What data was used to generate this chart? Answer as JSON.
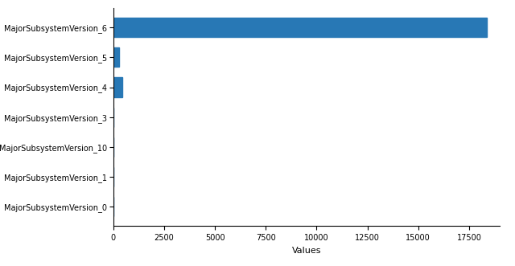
{
  "categories": [
    "MajorSubsystemVersion_6",
    "MajorSubsystemVersion_5",
    "MajorSubsystemVersion_4",
    "MajorSubsystemVersion_3",
    "MajorSubsystemVersion_10",
    "MajorSubsystemVersion_1",
    "MajorSubsystemVersion_0"
  ],
  "values": [
    18357,
    270,
    450,
    2,
    1,
    1,
    1
  ],
  "bar_color": "#2878b5",
  "xlabel": "Values",
  "xlim": [
    0,
    19000
  ],
  "xticks": [
    0,
    2500,
    5000,
    7500,
    10000,
    12500,
    15000,
    17500
  ],
  "background_color": "#ffffff",
  "tick_fontsize": 7,
  "label_fontsize": 8,
  "ytick_fontsize": 7
}
